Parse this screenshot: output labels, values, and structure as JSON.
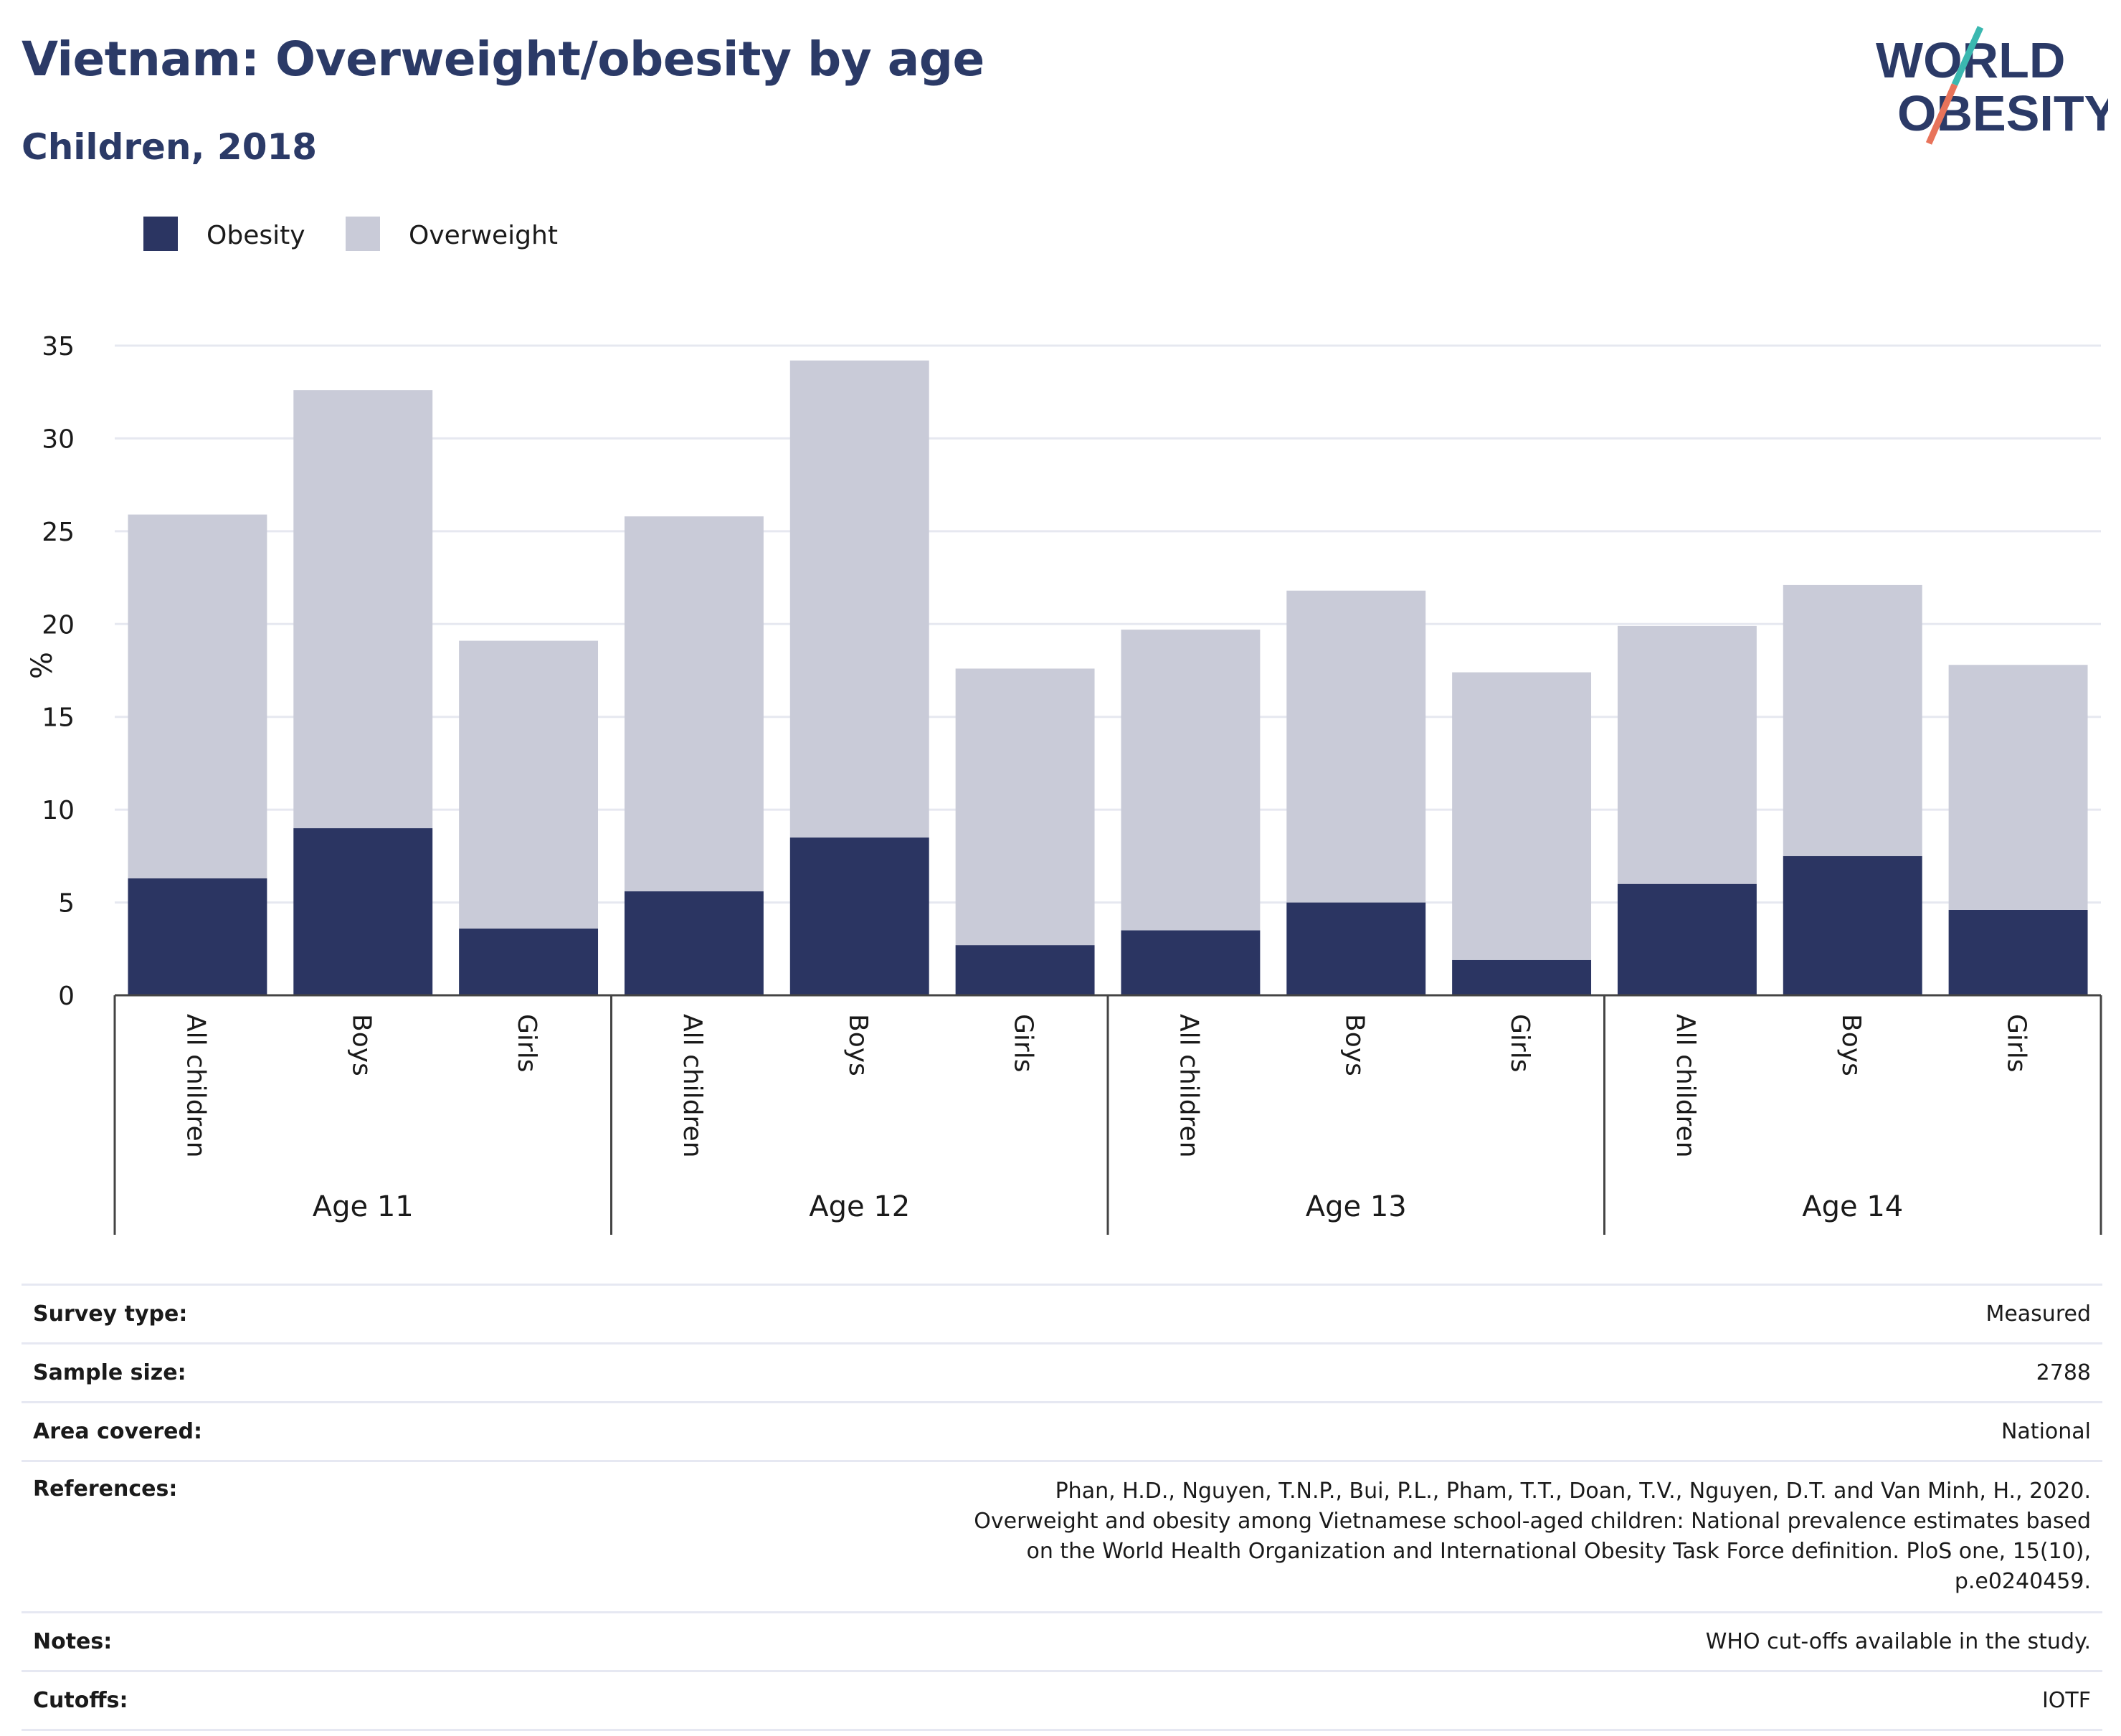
{
  "title": "Vietnam: Overweight/obesity by age",
  "subtitle": "Children, 2018",
  "logo": {
    "line1": "WORLD",
    "line2": "OBESITY",
    "accent_colors": [
      "#3bb8b0",
      "#e8735a"
    ]
  },
  "colors": {
    "obesity": "#2b3562",
    "overweight": "#c9cbd8",
    "text": "#2b3a67"
  },
  "chart_data": {
    "type": "bar",
    "stacked": true,
    "ylabel": "%",
    "ylim": [
      0,
      35
    ],
    "yticks": [
      0,
      5,
      10,
      15,
      20,
      25,
      30,
      35
    ],
    "grid": true,
    "legend_position": "top-left",
    "groups": [
      "Age 11",
      "Age 12",
      "Age 13",
      "Age 14"
    ],
    "subcategories": [
      "All children",
      "Boys",
      "Girls"
    ],
    "categories": [
      "All children",
      "Boys",
      "Girls",
      "All children",
      "Boys",
      "Girls",
      "All children",
      "Boys",
      "Girls",
      "All children",
      "Boys",
      "Girls"
    ],
    "series": [
      {
        "name": "Obesity",
        "values": [
          6.3,
          9.0,
          3.6,
          5.6,
          8.5,
          2.7,
          3.5,
          5.0,
          1.9,
          6.0,
          7.5,
          4.6
        ]
      },
      {
        "name": "Overweight",
        "values": [
          19.6,
          23.6,
          15.5,
          20.2,
          25.7,
          14.9,
          16.2,
          16.8,
          15.5,
          13.9,
          14.6,
          13.2
        ]
      }
    ]
  },
  "info": {
    "rows": [
      {
        "key": "Survey type:",
        "value": "Measured"
      },
      {
        "key": "Sample size:",
        "value": "2788"
      },
      {
        "key": "Area covered:",
        "value": "National"
      },
      {
        "key": "References:",
        "value": "Phan, H.D., Nguyen, T.N.P., Bui, P.L., Pham, T.T., Doan, T.V., Nguyen, D.T. and Van Minh, H., 2020. Overweight and obesity among Vietnamese school-aged children: National prevalence estimates based on the World Health Organization and International Obesity Task Force definition. PloS one, 15(10), p.e0240459."
      },
      {
        "key": "Notes:",
        "value": "WHO cut-offs available in the study."
      },
      {
        "key": "Cutoffs:",
        "value": "IOTF"
      }
    ]
  }
}
